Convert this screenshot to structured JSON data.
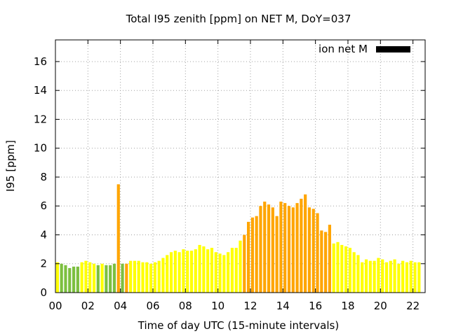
{
  "chart_data": {
    "type": "bar",
    "title": "Total I95 zenith [ppm] on NET M, DoY=037",
    "xlabel": "Time of day UTC (15-minute intervals)",
    "ylabel": "I95 [ppm]",
    "xlim": [
      0,
      22.75
    ],
    "ylim": [
      0,
      17.5
    ],
    "x_ticks": [
      "00",
      "02",
      "04",
      "06",
      "08",
      "10",
      "12",
      "14",
      "16",
      "18",
      "20",
      "22"
    ],
    "y_ticks": [
      "0",
      "2",
      "4",
      "6",
      "8",
      "10",
      "12",
      "14",
      "16"
    ],
    "grid": true,
    "legend": {
      "label": "ion net M",
      "position": "top-right",
      "color": "#000000"
    },
    "bar_interval_hours": 0.25,
    "colors": {
      "green": "#7cbf3f",
      "yellow": "#ffff00",
      "orange": "#ffa500"
    },
    "values": [
      2.1,
      2.0,
      1.9,
      1.7,
      1.8,
      1.8,
      2.1,
      2.2,
      2.1,
      2.0,
      1.9,
      2.0,
      1.9,
      1.9,
      2.0,
      7.5,
      2.0,
      2.0,
      2.2,
      2.2,
      2.2,
      2.1,
      2.1,
      2.0,
      2.1,
      2.2,
      2.4,
      2.6,
      2.8,
      2.9,
      2.8,
      3.0,
      2.9,
      2.9,
      3.0,
      3.3,
      3.2,
      3.0,
      3.1,
      2.8,
      2.7,
      2.6,
      2.8,
      3.1,
      3.1,
      3.6,
      4.0,
      4.9,
      5.2,
      5.3,
      6.0,
      6.3,
      6.1,
      5.9,
      5.3,
      6.3,
      6.2,
      6.0,
      5.9,
      6.2,
      6.5,
      6.8,
      5.9,
      5.8,
      5.5,
      4.3,
      4.2,
      4.7,
      3.4,
      3.5,
      3.3,
      3.2,
      3.1,
      2.8,
      2.6,
      2.1,
      2.3,
      2.2,
      2.2,
      2.4,
      2.3,
      2.1,
      2.2,
      2.3,
      2.0,
      2.2,
      2.1,
      2.2,
      2.1,
      2.1
    ],
    "bar_colors": [
      "yellow",
      "green",
      "green",
      "green",
      "green",
      "green",
      "yellow",
      "yellow",
      "yellow",
      "yellow",
      "green",
      "yellow",
      "green",
      "green",
      "green",
      "orange",
      "green",
      "orange",
      "yellow",
      "yellow",
      "yellow",
      "yellow",
      "yellow",
      "yellow",
      "yellow",
      "yellow",
      "yellow",
      "yellow",
      "yellow",
      "yellow",
      "yellow",
      "yellow",
      "yellow",
      "yellow",
      "yellow",
      "yellow",
      "yellow",
      "yellow",
      "yellow",
      "yellow",
      "yellow",
      "yellow",
      "yellow",
      "yellow",
      "yellow",
      "yellow",
      "orange",
      "orange",
      "orange",
      "orange",
      "orange",
      "orange",
      "orange",
      "orange",
      "orange",
      "orange",
      "orange",
      "orange",
      "orange",
      "orange",
      "orange",
      "orange",
      "orange",
      "orange",
      "orange",
      "orange",
      "orange",
      "orange",
      "yellow",
      "yellow",
      "yellow",
      "yellow",
      "yellow",
      "yellow",
      "yellow",
      "yellow",
      "yellow",
      "yellow",
      "yellow",
      "yellow",
      "yellow",
      "yellow",
      "yellow",
      "yellow",
      "yellow",
      "yellow",
      "yellow",
      "yellow",
      "yellow",
      "yellow"
    ]
  }
}
